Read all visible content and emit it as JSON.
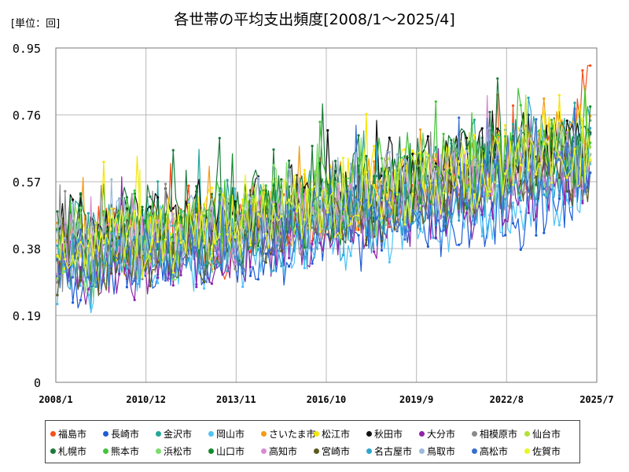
{
  "unit_label": "[単位：回]",
  "chart_data": {
    "type": "line",
    "title": "各世帯の平均支出頻度[2008/1～2025/4]",
    "xlabel": "",
    "ylabel": "",
    "ylim": [
      0,
      0.95
    ],
    "y_ticks": [
      "0",
      "0.19",
      "0.38",
      "0.57",
      "0.76",
      "0.95"
    ],
    "x_ticks": [
      "2008/1",
      "2010/12",
      "2013/11",
      "2016/10",
      "2019/9",
      "2022/8",
      "2025/7"
    ],
    "grid": true,
    "legend_position": "bottom",
    "series": [
      {
        "name": "福島市",
        "color": "#f4511e",
        "values": [
          0.35,
          0.42,
          0.38,
          0.45,
          0.36,
          0.4,
          0.44,
          0.39,
          0.47,
          0.41,
          0.38,
          0.43,
          0.46,
          0.4,
          0.48,
          0.44,
          0.51,
          0.47,
          0.5,
          0.55,
          0.49,
          0.52,
          0.58,
          0.54,
          0.6,
          0.56,
          0.62,
          0.58,
          0.66,
          0.6,
          0.71,
          0.65,
          0.89
        ]
      },
      {
        "name": "長崎市",
        "color": "#1e5cd6",
        "values": [
          0.32,
          0.28,
          0.36,
          0.3,
          0.34,
          0.29,
          0.37,
          0.33,
          0.35,
          0.31,
          0.38,
          0.34,
          0.36,
          0.39,
          0.35,
          0.4,
          0.37,
          0.42,
          0.39,
          0.44,
          0.41,
          0.43,
          0.46,
          0.42,
          0.48,
          0.45,
          0.47,
          0.5,
          0.46,
          0.52,
          0.49,
          0.55,
          0.6
        ]
      },
      {
        "name": "金沢市",
        "color": "#26a69a",
        "values": [
          0.4,
          0.46,
          0.38,
          0.5,
          0.42,
          0.47,
          0.4,
          0.45,
          0.43,
          0.48,
          0.41,
          0.46,
          0.44,
          0.5,
          0.45,
          0.52,
          0.47,
          0.55,
          0.5,
          0.57,
          0.52,
          0.6,
          0.55,
          0.63,
          0.57,
          0.66,
          0.6,
          0.68,
          0.62,
          0.71,
          0.64,
          0.72,
          0.7
        ]
      },
      {
        "name": "岡山市",
        "color": "#4fc3f7",
        "values": [
          0.3,
          0.35,
          0.28,
          0.33,
          0.37,
          0.31,
          0.34,
          0.38,
          0.32,
          0.36,
          0.4,
          0.35,
          0.39,
          0.42,
          0.37,
          0.41,
          0.44,
          0.39,
          0.43,
          0.46,
          0.41,
          0.45,
          0.48,
          0.44,
          0.47,
          0.5,
          0.46,
          0.52,
          0.48,
          0.54,
          0.5,
          0.56,
          0.58
        ]
      },
      {
        "name": "さいたま市",
        "color": "#f39c12",
        "values": [
          0.38,
          0.43,
          0.36,
          0.41,
          0.45,
          0.39,
          0.44,
          0.4,
          0.46,
          0.42,
          0.48,
          0.43,
          0.47,
          0.5,
          0.45,
          0.52,
          0.48,
          0.55,
          0.5,
          0.58,
          0.53,
          0.6,
          0.56,
          0.62,
          0.58,
          0.64,
          0.6,
          0.66,
          0.62,
          0.68,
          0.64,
          0.7,
          0.72
        ]
      },
      {
        "name": "松江市",
        "color": "#f5e50a",
        "values": [
          0.36,
          0.4,
          0.34,
          0.42,
          0.38,
          0.44,
          0.4,
          0.46,
          0.42,
          0.48,
          0.44,
          0.5,
          0.46,
          0.52,
          0.48,
          0.55,
          0.5,
          0.58,
          0.52,
          0.6,
          0.54,
          0.62,
          0.56,
          0.64,
          0.58,
          0.66,
          0.6,
          0.68,
          0.62,
          0.7,
          0.64,
          0.66,
          0.68
        ]
      },
      {
        "name": "秋田市",
        "color": "#111111",
        "values": [
          0.42,
          0.48,
          0.4,
          0.46,
          0.5,
          0.44,
          0.49,
          0.45,
          0.52,
          0.47,
          0.5,
          0.46,
          0.53,
          0.49,
          0.55,
          0.5,
          0.57,
          0.52,
          0.59,
          0.54,
          0.61,
          0.56,
          0.63,
          0.58,
          0.65,
          0.6,
          0.67,
          0.62,
          0.69,
          0.64,
          0.7,
          0.66,
          0.68
        ]
      },
      {
        "name": "大分市",
        "color": "#8e24aa",
        "values": [
          0.3,
          0.34,
          0.28,
          0.32,
          0.36,
          0.3,
          0.35,
          0.31,
          0.37,
          0.33,
          0.39,
          0.35,
          0.41,
          0.37,
          0.43,
          0.39,
          0.45,
          0.41,
          0.47,
          0.43,
          0.49,
          0.45,
          0.51,
          0.47,
          0.53,
          0.49,
          0.55,
          0.51,
          0.57,
          0.53,
          0.59,
          0.55,
          0.57
        ]
      },
      {
        "name": "相模原市",
        "color": "#8a8a8a",
        "values": [
          0.33,
          0.38,
          0.31,
          0.36,
          0.4,
          0.34,
          0.39,
          0.35,
          0.41,
          0.37,
          0.43,
          0.39,
          0.45,
          0.41,
          0.47,
          0.43,
          0.49,
          0.45,
          0.51,
          0.47,
          0.53,
          0.49,
          0.55,
          0.51,
          0.57,
          0.53,
          0.59,
          0.55,
          0.61,
          0.57,
          0.63,
          0.59,
          0.61
        ]
      },
      {
        "name": "仙台市",
        "color": "#b2e03a",
        "values": [
          0.37,
          0.42,
          0.35,
          0.4,
          0.44,
          0.38,
          0.43,
          0.39,
          0.45,
          0.41,
          0.47,
          0.43,
          0.49,
          0.45,
          0.51,
          0.47,
          0.53,
          0.49,
          0.55,
          0.51,
          0.57,
          0.53,
          0.59,
          0.55,
          0.61,
          0.57,
          0.63,
          0.59,
          0.65,
          0.61,
          0.67,
          0.63,
          0.65
        ]
      },
      {
        "name": "札幌市",
        "color": "#1b7a3a",
        "values": [
          0.41,
          0.46,
          0.39,
          0.44,
          0.48,
          0.42,
          0.47,
          0.43,
          0.49,
          0.45,
          0.51,
          0.47,
          0.53,
          0.49,
          0.55,
          0.51,
          0.57,
          0.53,
          0.59,
          0.55,
          0.61,
          0.57,
          0.63,
          0.59,
          0.65,
          0.61,
          0.67,
          0.63,
          0.69,
          0.65,
          0.71,
          0.67,
          0.69
        ]
      },
      {
        "name": "熊本市",
        "color": "#43c43a",
        "values": [
          0.39,
          0.44,
          0.37,
          0.42,
          0.46,
          0.4,
          0.45,
          0.41,
          0.47,
          0.43,
          0.49,
          0.45,
          0.51,
          0.47,
          0.53,
          0.49,
          0.55,
          0.51,
          0.57,
          0.53,
          0.59,
          0.55,
          0.61,
          0.57,
          0.63,
          0.59,
          0.65,
          0.61,
          0.67,
          0.63,
          0.69,
          0.65,
          0.67
        ]
      },
      {
        "name": "浜松市",
        "color": "#7bdc6a",
        "values": [
          0.34,
          0.39,
          0.32,
          0.37,
          0.41,
          0.35,
          0.4,
          0.36,
          0.42,
          0.38,
          0.44,
          0.4,
          0.46,
          0.42,
          0.48,
          0.44,
          0.5,
          0.46,
          0.52,
          0.48,
          0.54,
          0.5,
          0.56,
          0.52,
          0.58,
          0.54,
          0.6,
          0.56,
          0.62,
          0.58,
          0.64,
          0.6,
          0.62
        ]
      },
      {
        "name": "山口市",
        "color": "#138a2e",
        "values": [
          0.36,
          0.41,
          0.34,
          0.39,
          0.43,
          0.37,
          0.42,
          0.38,
          0.44,
          0.4,
          0.46,
          0.42,
          0.48,
          0.44,
          0.5,
          0.46,
          0.52,
          0.48,
          0.54,
          0.5,
          0.56,
          0.52,
          0.58,
          0.54,
          0.6,
          0.56,
          0.62,
          0.58,
          0.64,
          0.6,
          0.66,
          0.62,
          0.64
        ]
      },
      {
        "name": "高知市",
        "color": "#d98ad4",
        "values": [
          0.35,
          0.4,
          0.33,
          0.38,
          0.42,
          0.36,
          0.41,
          0.37,
          0.43,
          0.39,
          0.45,
          0.41,
          0.47,
          0.43,
          0.49,
          0.45,
          0.51,
          0.47,
          0.53,
          0.49,
          0.55,
          0.51,
          0.57,
          0.53,
          0.59,
          0.55,
          0.61,
          0.57,
          0.63,
          0.59,
          0.65,
          0.61,
          0.63
        ]
      },
      {
        "name": "宮崎市",
        "color": "#5a5a1e",
        "values": [
          0.32,
          0.37,
          0.3,
          0.35,
          0.39,
          0.33,
          0.38,
          0.34,
          0.4,
          0.36,
          0.42,
          0.38,
          0.44,
          0.4,
          0.46,
          0.42,
          0.48,
          0.44,
          0.5,
          0.46,
          0.52,
          0.48,
          0.54,
          0.5,
          0.56,
          0.52,
          0.58,
          0.54,
          0.6,
          0.56,
          0.62,
          0.58,
          0.6
        ]
      },
      {
        "name": "名古屋市",
        "color": "#2fa4cf",
        "values": [
          0.31,
          0.36,
          0.29,
          0.34,
          0.38,
          0.32,
          0.37,
          0.33,
          0.39,
          0.35,
          0.41,
          0.37,
          0.43,
          0.39,
          0.45,
          0.41,
          0.47,
          0.43,
          0.49,
          0.45,
          0.51,
          0.47,
          0.53,
          0.49,
          0.55,
          0.51,
          0.57,
          0.53,
          0.59,
          0.55,
          0.61,
          0.57,
          0.59
        ]
      },
      {
        "name": "鳥取市",
        "color": "#9fb8dc",
        "values": [
          0.38,
          0.43,
          0.36,
          0.41,
          0.45,
          0.39,
          0.44,
          0.4,
          0.46,
          0.42,
          0.48,
          0.44,
          0.5,
          0.46,
          0.52,
          0.48,
          0.54,
          0.5,
          0.56,
          0.52,
          0.58,
          0.54,
          0.6,
          0.56,
          0.62,
          0.58,
          0.64,
          0.6,
          0.66,
          0.62,
          0.68,
          0.64,
          0.66
        ]
      },
      {
        "name": "高松市",
        "color": "#3a6fd0",
        "values": [
          0.33,
          0.38,
          0.31,
          0.36,
          0.4,
          0.34,
          0.39,
          0.35,
          0.41,
          0.37,
          0.43,
          0.39,
          0.45,
          0.41,
          0.47,
          0.43,
          0.49,
          0.45,
          0.51,
          0.47,
          0.53,
          0.49,
          0.55,
          0.51,
          0.57,
          0.53,
          0.59,
          0.55,
          0.61,
          0.57,
          0.63,
          0.59,
          0.61
        ]
      },
      {
        "name": "佐賀市",
        "color": "#e8f52a",
        "values": [
          0.37,
          0.42,
          0.35,
          0.4,
          0.44,
          0.38,
          0.43,
          0.39,
          0.45,
          0.41,
          0.47,
          0.43,
          0.49,
          0.45,
          0.51,
          0.47,
          0.53,
          0.49,
          0.55,
          0.51,
          0.57,
          0.53,
          0.59,
          0.55,
          0.61,
          0.57,
          0.63,
          0.59,
          0.65,
          0.61,
          0.67,
          0.63,
          0.65
        ]
      }
    ]
  }
}
